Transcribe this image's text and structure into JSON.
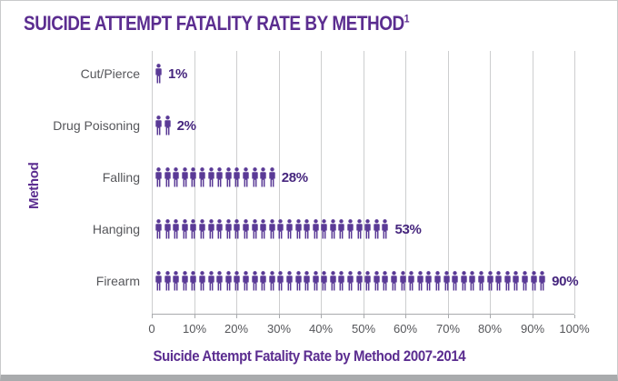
{
  "title": {
    "text": "SUICIDE ATTEMPT FATALITY RATE BY METHOD",
    "superscript": "1"
  },
  "y_axis_label": "Method",
  "x_axis_title": "Suicide Attempt Fatality Rate by Method 2007-2014",
  "x_ticks": [
    "0",
    "10%",
    "20%",
    "30%",
    "40%",
    "50%",
    "60%",
    "70%",
    "80%",
    "90%",
    "100%"
  ],
  "colors": {
    "title_purple": "#5b2d90",
    "icon_purple": "#5a3a96",
    "value_purple": "#46267e",
    "label_gray": "#55565a",
    "gridline_gray": "#cdcecf",
    "axis_gray": "#a8aaad"
  },
  "icon_name": "person-icon",
  "chart_data": {
    "type": "bar",
    "subtype": "pictogram",
    "orientation": "horizontal",
    "title": "SUICIDE ATTEMPT FATALITY RATE BY METHOD (superscript 1)",
    "xlabel": "Suicide Attempt Fatality Rate by Method 2007-2014",
    "ylabel": "Method",
    "categories": [
      "Cut/Pierce",
      "Drug Poisoning",
      "Falling",
      "Hanging",
      "Firearm"
    ],
    "values": [
      1,
      2,
      28,
      53,
      90
    ],
    "value_labels": [
      "1%",
      "2%",
      "28%",
      "53%",
      "90%"
    ],
    "icon_counts": [
      1,
      2,
      14,
      27,
      45
    ],
    "xlim": [
      0,
      100
    ],
    "x_tick_step": 10,
    "grid": true,
    "legend": false
  }
}
